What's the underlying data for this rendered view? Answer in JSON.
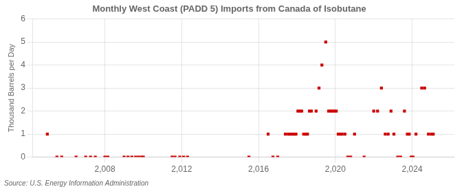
{
  "chart_data": {
    "type": "scatter",
    "title": "Monthly West Coast (PADD 5) Imports from Canada of Isobutane",
    "ylabel": "Thousand Barrels per Day",
    "annotations": [
      "Source: U.S. Energy Information Administration"
    ],
    "color": "#cc0000",
    "marker": "square",
    "grid": true,
    "xlim": [
      2004.25,
      2026.2
    ],
    "xticks": [
      2008,
      2012,
      2016,
      2020,
      2024
    ],
    "ylim": [
      0,
      6
    ],
    "yticks": [
      0,
      1,
      2,
      3,
      4,
      5,
      6
    ],
    "x": [
      2005.0,
      2005.5,
      2005.75,
      2006.5,
      2007.0,
      2007.25,
      2007.5,
      2008.0,
      2008.15,
      2009.0,
      2009.2,
      2009.4,
      2009.6,
      2009.75,
      2009.9,
      2010.0,
      2011.5,
      2011.65,
      2011.9,
      2012.1,
      2012.3,
      2015.5,
      2016.5,
      2016.75,
      2017.0,
      2017.4,
      2017.55,
      2017.65,
      2017.75,
      2017.85,
      2017.95,
      2018.05,
      2018.15,
      2018.25,
      2018.35,
      2018.45,
      2018.55,
      2018.65,
      2018.75,
      2019.0,
      2019.15,
      2019.3,
      2019.5,
      2019.65,
      2019.75,
      2019.85,
      2019.95,
      2020.05,
      2020.15,
      2020.25,
      2020.35,
      2020.5,
      2020.65,
      2020.8,
      2021.0,
      2021.5,
      2022.0,
      2022.2,
      2022.4,
      2022.6,
      2022.75,
      2022.9,
      2023.05,
      2023.25,
      2023.4,
      2023.6,
      2023.75,
      2023.85,
      2023.95,
      2024.05,
      2024.2,
      2024.5,
      2024.65,
      2024.85,
      2025.0,
      2025.1
    ],
    "values": [
      1,
      0,
      0,
      0,
      0,
      0,
      0,
      0,
      0,
      0,
      0,
      0,
      0,
      0,
      0,
      0,
      0,
      0,
      0,
      0,
      0,
      0,
      1,
      0,
      0,
      1,
      1,
      1,
      1,
      1,
      1,
      2,
      2,
      2,
      1,
      1,
      1,
      2,
      2,
      2,
      3,
      4,
      5,
      2,
      2,
      2,
      2,
      2,
      1,
      1,
      1,
      1,
      0,
      0,
      1,
      0,
      2,
      2,
      3,
      1,
      1,
      2,
      1,
      0,
      0,
      2,
      1,
      1,
      0,
      0,
      1,
      3,
      3,
      1,
      1,
      1
    ]
  }
}
